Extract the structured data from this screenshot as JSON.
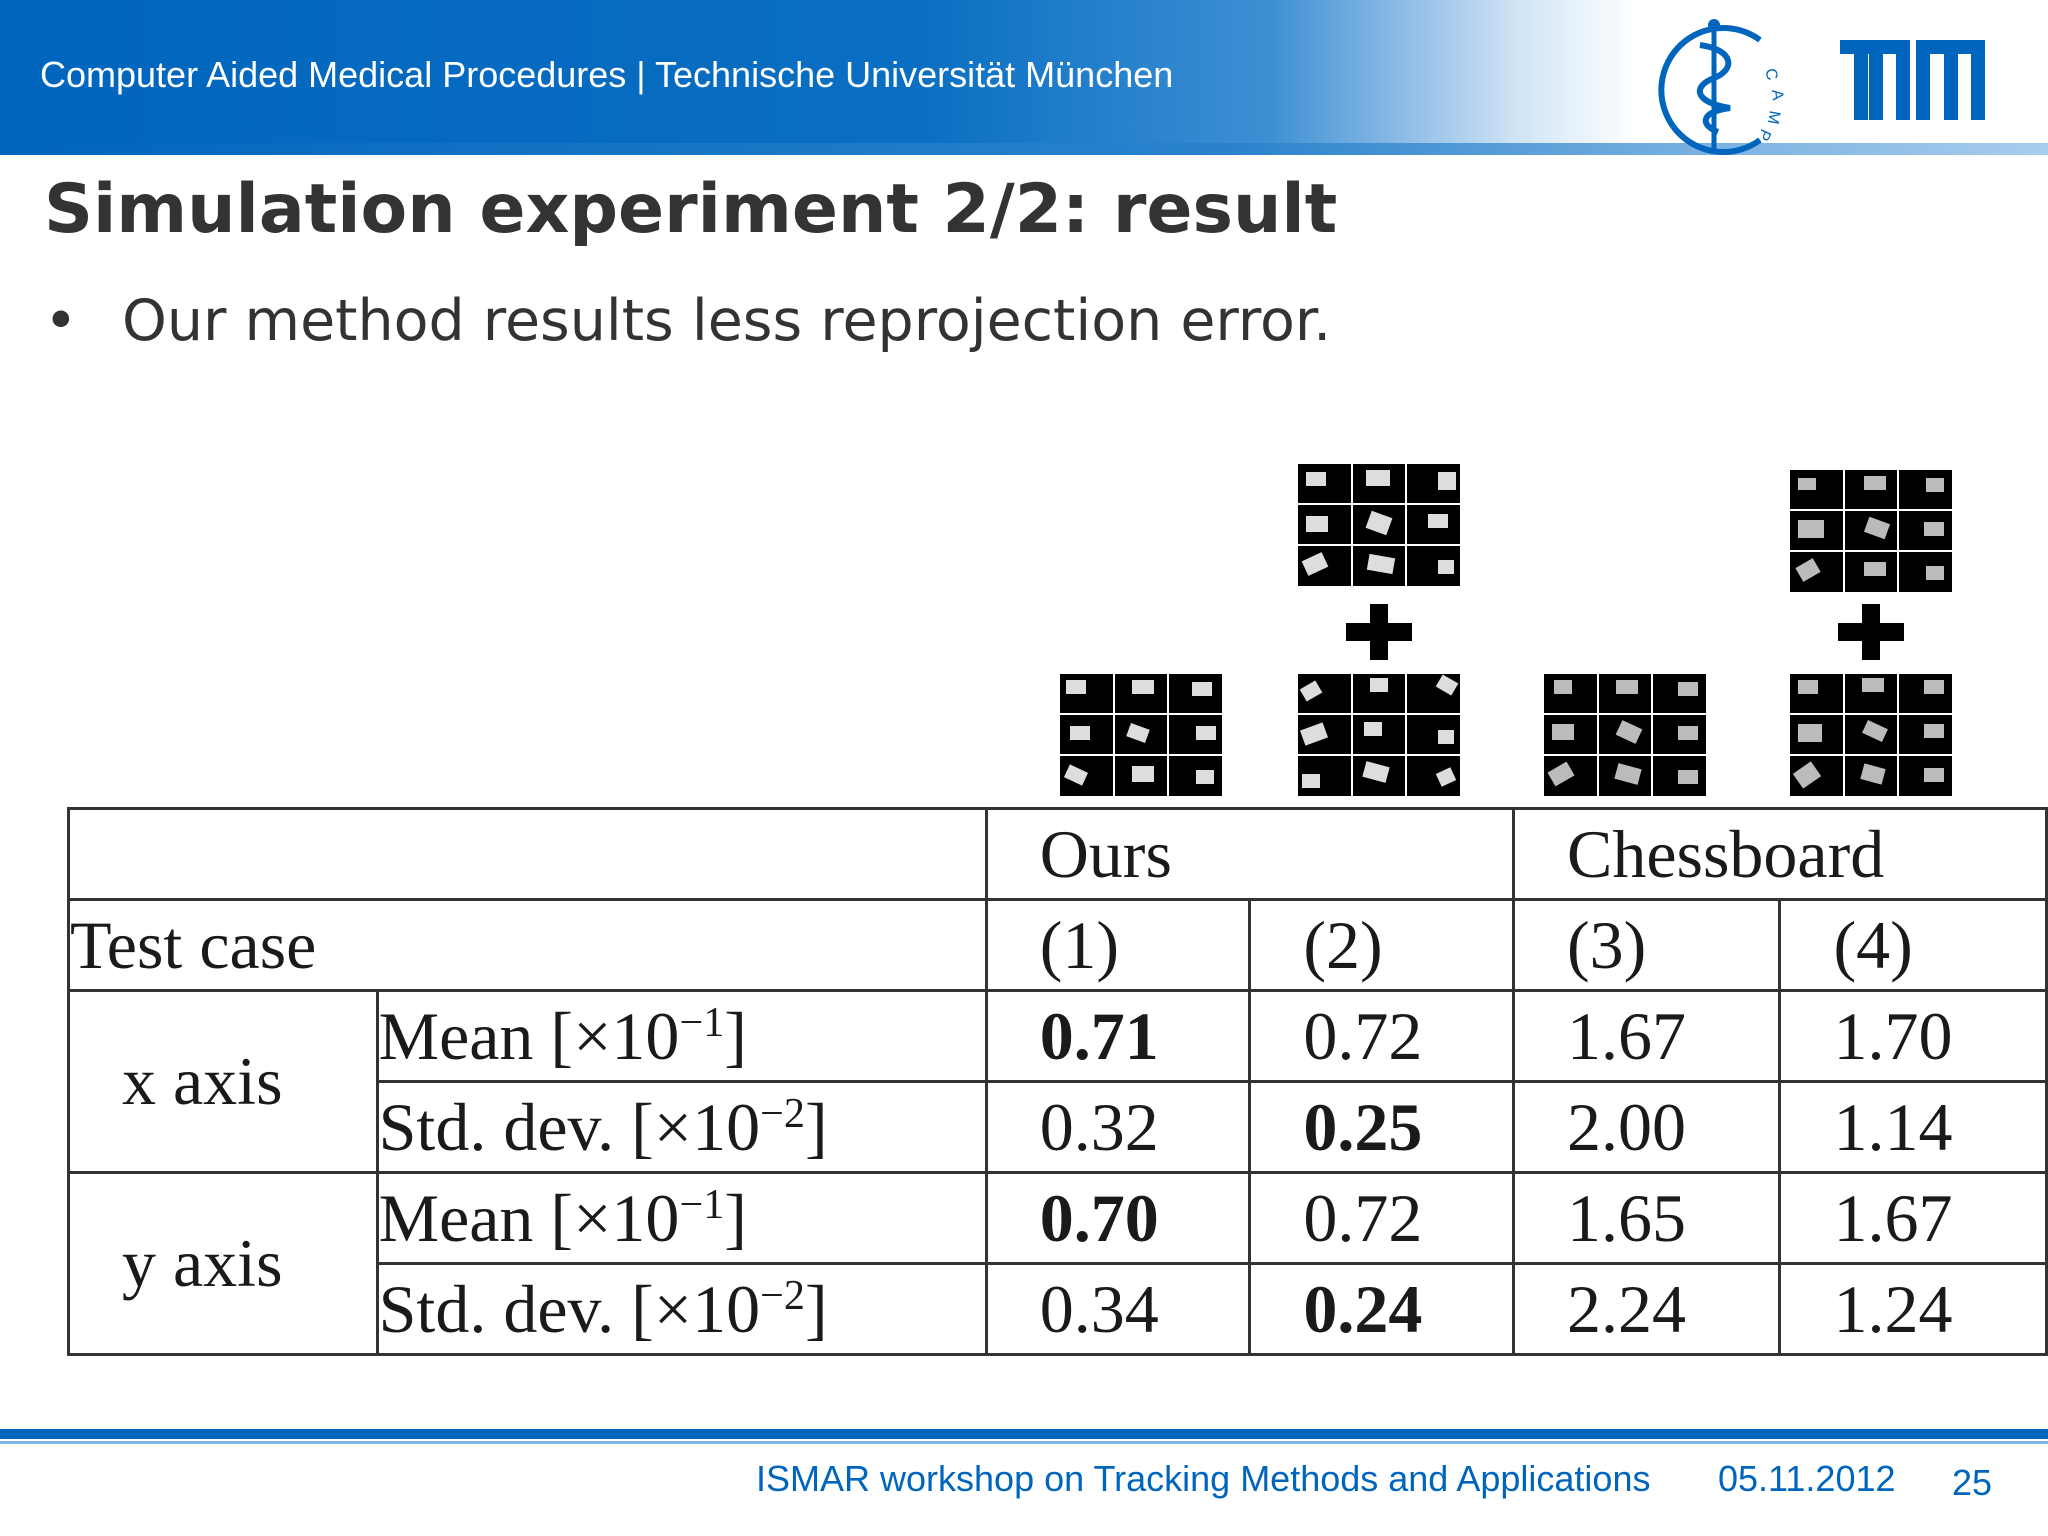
{
  "header": {
    "institution": "Computer Aided Medical Procedures | Technische Universität München",
    "logo_camp_text": "CAMP",
    "logo_tum_text": "TUM",
    "brand_color": "#0065bd"
  },
  "slide": {
    "title": "Simulation experiment 2/2: result",
    "bullet": "Our method results less reprojection error."
  },
  "table": {
    "group_ours": "Ours",
    "group_chessboard": "Chessboard",
    "test_case_label": "Test case",
    "case_labels": [
      "(1)",
      "(2)",
      "(3)",
      "(4)"
    ],
    "x_axis_label": "x axis",
    "y_axis_label": "y axis",
    "mean_label": "Mean [×10",
    "mean_exp": "−1",
    "std_label": "Std. dev. [×10",
    "std_exp": "−2",
    "bracket_close": "]",
    "x_mean": [
      "0.71",
      "0.72",
      "1.67",
      "1.70"
    ],
    "x_std": [
      "0.32",
      "0.25",
      "2.00",
      "1.14"
    ],
    "y_mean": [
      "0.70",
      "0.72",
      "1.65",
      "1.67"
    ],
    "y_std": [
      "0.34",
      "0.24",
      "2.24",
      "1.24"
    ]
  },
  "footer": {
    "event": "ISMAR workshop on Tracking Methods and Applications",
    "date": "05.11.2012",
    "page": "25"
  }
}
